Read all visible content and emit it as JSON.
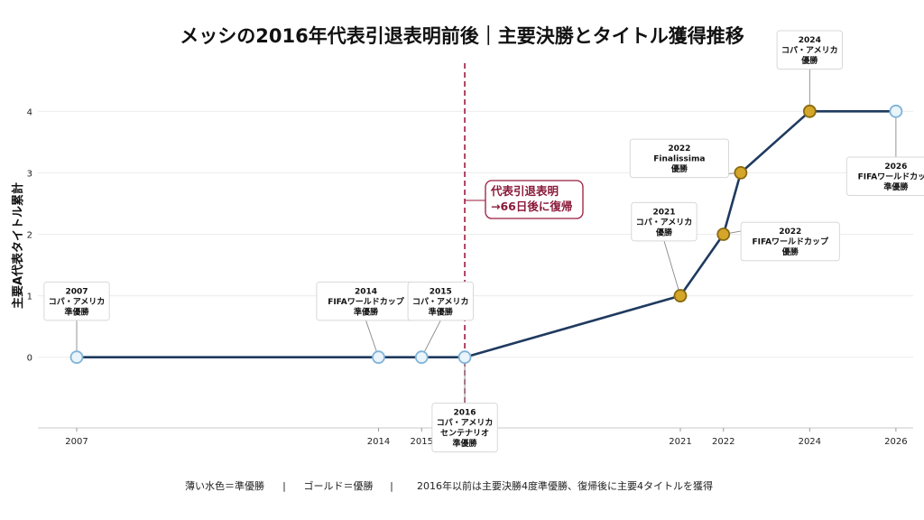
{
  "title": "メッシの2016年代表引退表明前後｜主要決勝とタイトル獲得推移",
  "chart_data": {
    "type": "line",
    "ylabel": "主要A代表タイトル累計",
    "ylim": [
      -1.15,
      4.9
    ],
    "yticks": [
      0,
      1,
      2,
      3,
      4
    ],
    "xlim": [
      2006.1,
      2026.4
    ],
    "xticks": [
      "2007",
      "2014",
      "2015",
      "2016",
      "2021",
      "2022",
      "2024",
      "2026"
    ],
    "grid": "horizontal",
    "series": [
      {
        "points": [
          {
            "x": 2007,
            "y": 0,
            "result": "runner-up"
          },
          {
            "x": 2014,
            "y": 0,
            "result": "runner-up"
          },
          {
            "x": 2015,
            "y": 0,
            "result": "runner-up"
          },
          {
            "x": 2016,
            "y": 0,
            "result": "runner-up"
          },
          {
            "x": 2021,
            "y": 1,
            "result": "winner"
          },
          {
            "x": 2022,
            "y": 2,
            "result": "winner"
          },
          {
            "x": 2022.4,
            "y": 3,
            "result": "winner"
          },
          {
            "x": 2024,
            "y": 4,
            "result": "winner"
          },
          {
            "x": 2026,
            "y": 4,
            "result": "runner-up"
          }
        ]
      }
    ],
    "annotations": [
      {
        "lines": [
          "2007",
          "コパ・アメリカ",
          "準優勝"
        ]
      },
      {
        "lines": [
          "2014",
          "FIFAワールドカップ",
          "準優勝"
        ]
      },
      {
        "lines": [
          "2015",
          "コパ・アメリカ",
          "準優勝"
        ]
      },
      {
        "lines": [
          "2016",
          "コパ・アメリカ",
          "センテナリオ",
          "準優勝"
        ]
      },
      {
        "lines": [
          "2021",
          "コパ・アメリカ",
          "優勝"
        ]
      },
      {
        "lines": [
          "2022",
          "FIFAワールドカップ",
          "優勝"
        ]
      },
      {
        "lines": [
          "2022",
          "Finalissima",
          "優勝"
        ]
      },
      {
        "lines": [
          "2024",
          "コパ・アメリカ",
          "優勝"
        ]
      },
      {
        "lines": [
          "2026",
          "FIFAワールドカップ",
          "準優勝"
        ]
      }
    ],
    "retirement_marker": {
      "x": 2016,
      "lines": [
        "代表引退表明",
        "→66日後に復帰"
      ]
    },
    "colors": {
      "line": "#1f3a5f",
      "winner_fill": "#d4a62a",
      "winner_stroke": "#8a6a10",
      "runner_up_fill": "#eaf4fb",
      "runner_up_stroke": "#7fb3d8",
      "marker_line": "#9b1b3e"
    }
  },
  "footer": {
    "legend_runner_up": "薄い水色＝準優勝",
    "legend_winner": "ゴールド＝優勝",
    "note": "2016年以前は主要決勝4度準優勝、復帰後に主要4タイトルを獲得",
    "separator": "|"
  }
}
